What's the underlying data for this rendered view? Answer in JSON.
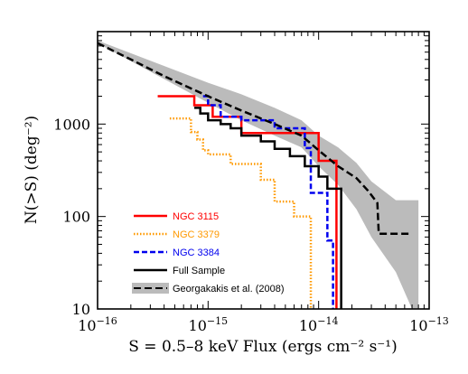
{
  "chart_data": {
    "type": "line",
    "xlabel": "S = 0.5–8 keV Flux (ergs cm⁻² s⁻¹)",
    "ylabel": "N(>S)  (deg⁻²)",
    "xscale": "log",
    "yscale": "log",
    "xlim": [
      1e-16,
      1e-13
    ],
    "ylim": [
      10,
      10000
    ],
    "x_ticks": [
      {
        "value": 1e-16,
        "base": "10",
        "exp": "−16"
      },
      {
        "value": 1e-15,
        "base": "10",
        "exp": "−15"
      },
      {
        "value": 1e-14,
        "base": "10",
        "exp": "−14"
      },
      {
        "value": 1e-13,
        "base": "10",
        "exp": "−13"
      }
    ],
    "y_ticks": [
      {
        "value": 10,
        "label": "10"
      },
      {
        "value": 100,
        "label": "100"
      },
      {
        "value": 1000,
        "label": "1000"
      }
    ],
    "grid": false,
    "legend_position": "bottom-left",
    "series": [
      {
        "name": "NGC 3115",
        "color": "#ff0000",
        "dash": "solid",
        "step": true,
        "x": [
          3.5e-16,
          7.5e-16,
          7.5e-16,
          1.1e-15,
          1.1e-15,
          2e-15,
          2e-15,
          5e-15,
          5e-15,
          1e-14,
          1e-14,
          1.45e-14,
          1.45e-14
        ],
        "y": [
          2000,
          2000,
          1600,
          1600,
          1200,
          1200,
          800,
          800,
          800,
          800,
          400,
          400,
          10
        ]
      },
      {
        "name": "NGC 3379",
        "color": "#ff9900",
        "dash": "dotted",
        "step": true,
        "x": [
          4.5e-16,
          7e-16,
          7e-16,
          8e-16,
          8e-16,
          9e-16,
          9e-16,
          1e-15,
          1e-15,
          1.6e-15,
          1.6e-15,
          3e-15,
          3e-15,
          4e-15,
          4e-15,
          6e-15,
          6e-15,
          8.5e-15,
          8.5e-15
        ],
        "y": [
          1150,
          1150,
          820,
          820,
          680,
          680,
          520,
          520,
          470,
          470,
          370,
          370,
          250,
          250,
          145,
          145,
          100,
          100,
          10
        ]
      },
      {
        "name": "NGC 3384",
        "color": "#0000ee",
        "dash": "dashed",
        "step": true,
        "x": [
          9e-16,
          1e-15,
          1e-15,
          1.3e-15,
          1.3e-15,
          2e-15,
          2e-15,
          4e-15,
          4e-15,
          7.5e-15,
          7.5e-15,
          8.5e-15,
          8.5e-15,
          1.2e-14,
          1.2e-14,
          1.35e-14,
          1.35e-14
        ],
        "y": [
          2000,
          2000,
          1600,
          1600,
          1200,
          1200,
          1100,
          1100,
          900,
          900,
          550,
          550,
          180,
          180,
          55,
          55,
          10
        ]
      },
      {
        "name": "Full Sample",
        "color": "#000000",
        "dash": "solid",
        "step": true,
        "x": [
          7.5e-16,
          8.5e-16,
          8.5e-16,
          1e-15,
          1e-15,
          1.3e-15,
          1.3e-15,
          1.6e-15,
          1.6e-15,
          2e-15,
          2e-15,
          3e-15,
          3e-15,
          4e-15,
          4e-15,
          5.5e-15,
          5.5e-15,
          7.5e-15,
          7.5e-15,
          1e-14,
          1e-14,
          1.2e-14,
          1.2e-14,
          1.6e-14,
          1.6e-14
        ],
        "y": [
          1500,
          1500,
          1300,
          1300,
          1100,
          1100,
          1000,
          1000,
          900,
          900,
          750,
          750,
          650,
          650,
          540,
          540,
          450,
          450,
          350,
          350,
          270,
          270,
          200,
          200,
          10
        ]
      },
      {
        "name": "Georgakakis et al. (2008)",
        "color": "#000000",
        "dash": "long-dash",
        "step": false,
        "band_color": "#bbbbbb",
        "x": [
          1e-16,
          2e-16,
          4e-16,
          1e-15,
          2e-15,
          4e-15,
          7e-15,
          1e-14,
          1.5e-14,
          2.2e-14,
          2.8e-14,
          3.4e-14,
          3.5e-14,
          5e-14,
          7e-14
        ],
        "y": [
          7500,
          5000,
          3300,
          2000,
          1400,
          1000,
          750,
          520,
          350,
          260,
          190,
          140,
          65,
          65,
          65
        ],
        "band_x": [
          1e-16,
          1e-15,
          2e-15,
          4e-15,
          7e-15,
          1e-14,
          1.5e-14,
          2.2e-14,
          3e-14,
          5e-14,
          7e-14,
          8e-14
        ],
        "band_upper": [
          8000,
          2800,
          2100,
          1500,
          1100,
          750,
          560,
          380,
          240,
          150,
          150,
          150
        ],
        "band_lower": [
          7500,
          1700,
          1100,
          750,
          560,
          350,
          220,
          120,
          60,
          25,
          10,
          10
        ]
      }
    ]
  }
}
